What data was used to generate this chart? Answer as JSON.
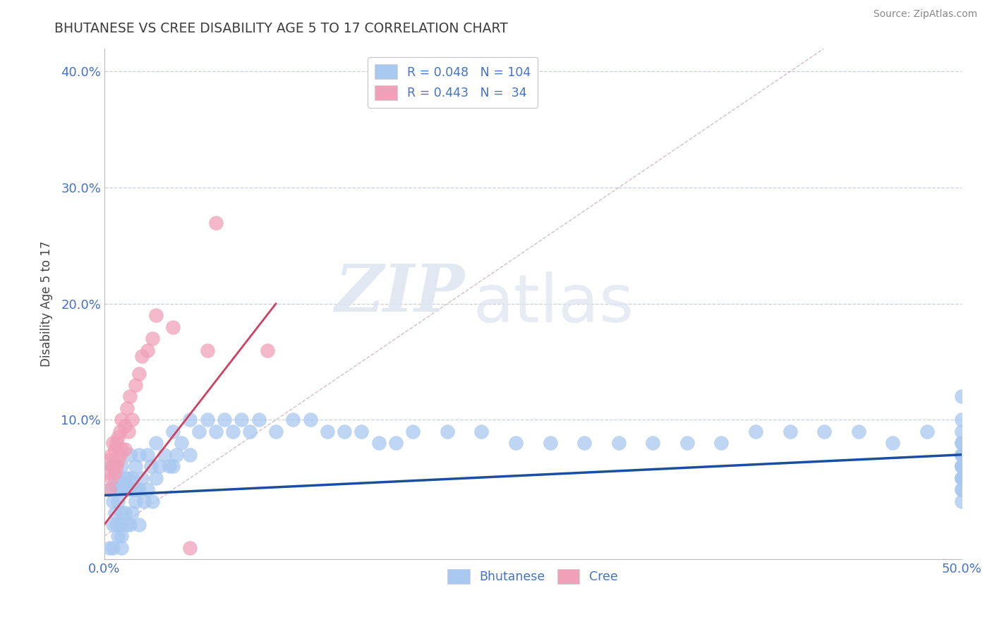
{
  "title": "BHUTANESE VS CREE DISABILITY AGE 5 TO 17 CORRELATION CHART",
  "source": "Source: ZipAtlas.com",
  "ylabel": "Disability Age 5 to 17",
  "xlim": [
    0.0,
    0.5
  ],
  "ylim": [
    -0.02,
    0.42
  ],
  "title_color": "#3d3d3d",
  "axis_color": "#4472c4",
  "background_color": "#ffffff",
  "grid_color": "#c8cfe0",
  "bhutanese_color": "#a8c8f0",
  "cree_color": "#f0a0b8",
  "bhutanese_R": 0.048,
  "bhutanese_N": 104,
  "cree_R": 0.443,
  "cree_N": 34,
  "bhutanese_line_color": "#1a4fa0",
  "cree_line_color": "#d04060",
  "diag_color": "#d0b8c0",
  "watermark_zip": "ZIP",
  "watermark_atlas": "atlas",
  "bhutanese_x": [
    0.003,
    0.003,
    0.004,
    0.005,
    0.005,
    0.005,
    0.006,
    0.006,
    0.007,
    0.007,
    0.008,
    0.008,
    0.008,
    0.009,
    0.009,
    0.01,
    0.01,
    0.01,
    0.01,
    0.01,
    0.012,
    0.012,
    0.013,
    0.013,
    0.014,
    0.015,
    0.015,
    0.015,
    0.016,
    0.016,
    0.017,
    0.018,
    0.018,
    0.019,
    0.02,
    0.02,
    0.02,
    0.022,
    0.023,
    0.025,
    0.025,
    0.027,
    0.028,
    0.03,
    0.03,
    0.032,
    0.035,
    0.038,
    0.04,
    0.04,
    0.042,
    0.045,
    0.05,
    0.05,
    0.055,
    0.06,
    0.065,
    0.07,
    0.075,
    0.08,
    0.085,
    0.09,
    0.1,
    0.11,
    0.12,
    0.13,
    0.14,
    0.15,
    0.16,
    0.17,
    0.18,
    0.2,
    0.22,
    0.24,
    0.26,
    0.28,
    0.3,
    0.32,
    0.34,
    0.36,
    0.38,
    0.4,
    0.42,
    0.44,
    0.46,
    0.48,
    0.5,
    0.5,
    0.5,
    0.5,
    0.5,
    0.5,
    0.5,
    0.5,
    0.5,
    0.5,
    0.5,
    0.5,
    0.5,
    0.5,
    0.5,
    0.5,
    0.5,
    0.5
  ],
  "bhutanese_y": [
    0.04,
    -0.01,
    0.06,
    0.03,
    0.01,
    -0.01,
    0.05,
    0.02,
    0.04,
    0.01,
    0.05,
    0.03,
    0.0,
    0.04,
    0.01,
    0.06,
    0.04,
    0.02,
    0.0,
    -0.01,
    0.05,
    0.02,
    0.04,
    0.01,
    0.05,
    0.07,
    0.04,
    0.01,
    0.05,
    0.02,
    0.04,
    0.06,
    0.03,
    0.04,
    0.07,
    0.04,
    0.01,
    0.05,
    0.03,
    0.07,
    0.04,
    0.06,
    0.03,
    0.08,
    0.05,
    0.06,
    0.07,
    0.06,
    0.09,
    0.06,
    0.07,
    0.08,
    0.1,
    0.07,
    0.09,
    0.1,
    0.09,
    0.1,
    0.09,
    0.1,
    0.09,
    0.1,
    0.09,
    0.1,
    0.1,
    0.09,
    0.09,
    0.09,
    0.08,
    0.08,
    0.09,
    0.09,
    0.09,
    0.08,
    0.08,
    0.08,
    0.08,
    0.08,
    0.08,
    0.08,
    0.09,
    0.09,
    0.09,
    0.09,
    0.08,
    0.09,
    0.12,
    0.1,
    0.09,
    0.08,
    0.07,
    0.06,
    0.05,
    0.04,
    0.06,
    0.05,
    0.07,
    0.06,
    0.08,
    0.07,
    0.05,
    0.04,
    0.03,
    0.06
  ],
  "cree_x": [
    0.002,
    0.003,
    0.003,
    0.004,
    0.004,
    0.005,
    0.005,
    0.006,
    0.006,
    0.007,
    0.007,
    0.008,
    0.008,
    0.009,
    0.009,
    0.01,
    0.01,
    0.012,
    0.012,
    0.013,
    0.014,
    0.015,
    0.016,
    0.018,
    0.02,
    0.022,
    0.025,
    0.028,
    0.03,
    0.04,
    0.05,
    0.06,
    0.065,
    0.095
  ],
  "cree_y": [
    0.065,
    0.055,
    0.04,
    0.07,
    0.05,
    0.08,
    0.06,
    0.075,
    0.055,
    0.08,
    0.06,
    0.085,
    0.065,
    0.09,
    0.07,
    0.1,
    0.075,
    0.095,
    0.075,
    0.11,
    0.09,
    0.12,
    0.1,
    0.13,
    0.14,
    0.155,
    0.16,
    0.17,
    0.19,
    0.18,
    -0.01,
    0.16,
    0.27,
    0.16
  ]
}
